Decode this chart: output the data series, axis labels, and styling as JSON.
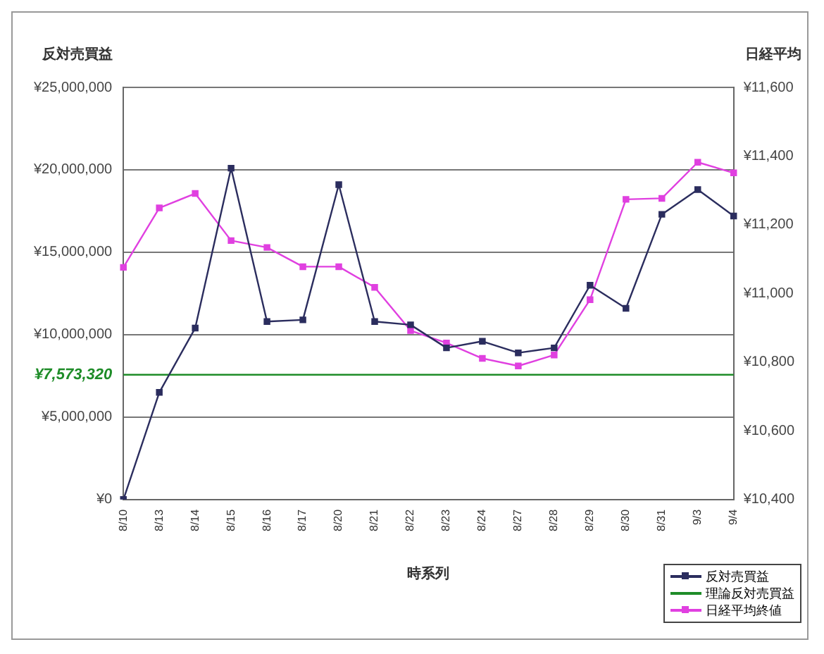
{
  "chart_data": {
    "type": "line",
    "xlabel": "時系列",
    "ylabel": "反対売買益",
    "y2label": "日経平均",
    "categories": [
      "8/10",
      "8/13",
      "8/14",
      "8/15",
      "8/16",
      "8/17",
      "8/20",
      "8/21",
      "8/22",
      "8/23",
      "8/24",
      "8/27",
      "8/28",
      "8/29",
      "8/30",
      "8/31",
      "9/3",
      "9/4"
    ],
    "series": [
      {
        "name": "反対売買益",
        "color": "#2b2d5e",
        "values": [
          0,
          6500000,
          10400000,
          20100000,
          10800000,
          10900000,
          19100000,
          10800000,
          10600000,
          9200000,
          9600000,
          8900000,
          9200000,
          13000000,
          11600000,
          17300000,
          18800000,
          17200000
        ]
      },
      {
        "name": "理論反対売買益",
        "color": "#1e8c28",
        "marker": "none",
        "values": [
          7573320,
          7573320,
          7573320,
          7573320,
          7573320,
          7573320,
          7573320,
          7573320,
          7573320,
          7573320,
          7573320,
          7573320,
          7573320,
          7573320,
          7573320,
          7573320,
          7573320,
          7573320
        ]
      },
      {
        "name": "日経平均終値",
        "color": "#e040e0",
        "axis": "y2",
        "values": [
          11076,
          11249,
          11291,
          11154,
          11134,
          11078,
          11078,
          11018,
          10892,
          10856,
          10811,
          10789,
          10821,
          10982,
          11274,
          11277,
          11382,
          11351
        ]
      }
    ],
    "annotations": [
      "¥7,573,320"
    ],
    "ylim": [
      0,
      25000000
    ],
    "yticks": [
      {
        "value": 0,
        "label": "¥0"
      },
      {
        "value": 5000000,
        "label": "¥5,000,000"
      },
      {
        "value": 10000000,
        "label": "¥10,000,000"
      },
      {
        "value": 15000000,
        "label": "¥15,000,000"
      },
      {
        "value": 20000000,
        "label": "¥20,000,000"
      },
      {
        "value": 25000000,
        "label": "¥25,000,000"
      }
    ],
    "y2lim": [
      10400,
      11600
    ],
    "y2ticks": [
      {
        "value": 10400,
        "label": "¥10,400"
      },
      {
        "value": 10600,
        "label": "¥10,600"
      },
      {
        "value": 10800,
        "label": "¥10,800"
      },
      {
        "value": 11000,
        "label": "¥11,000"
      },
      {
        "value": 11200,
        "label": "¥11,200"
      },
      {
        "value": 11400,
        "label": "¥11,400"
      },
      {
        "value": 11600,
        "label": "¥11,600"
      }
    ],
    "grid": "y",
    "legend": "bottom right",
    "marker": "square",
    "line_style": "solid"
  }
}
